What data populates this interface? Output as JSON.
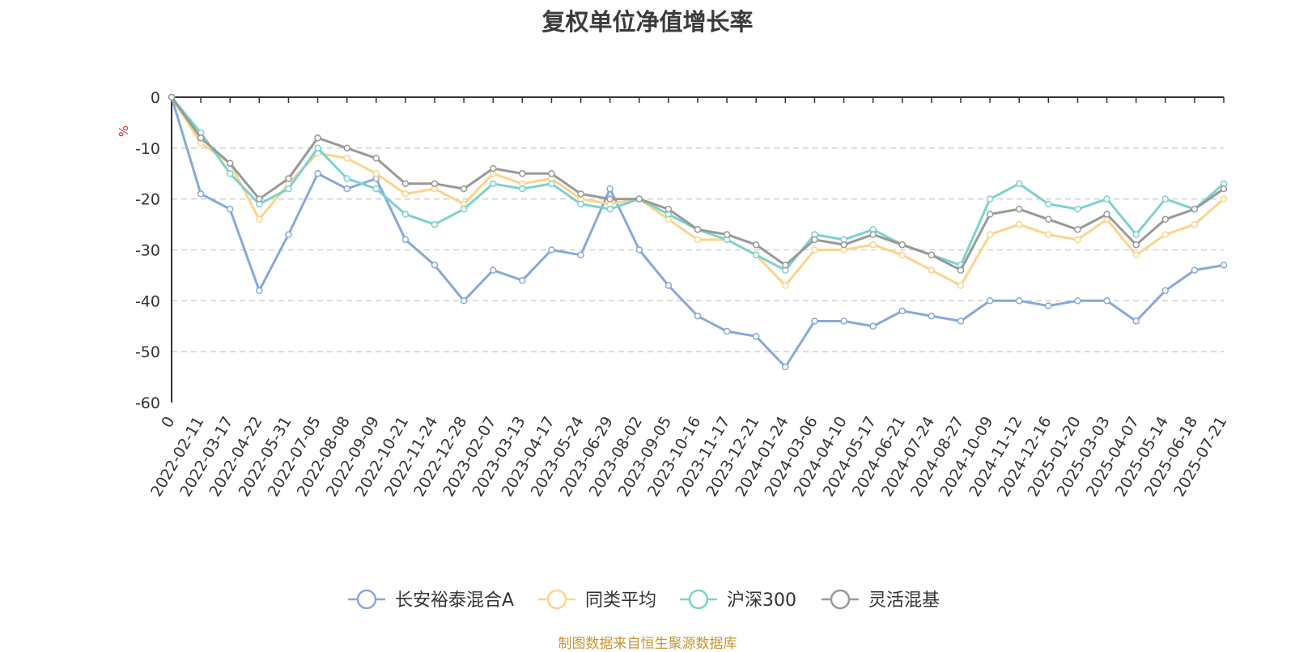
{
  "chart_data": {
    "type": "line",
    "title": "复权单位净值增长率",
    "ylabel": "%",
    "ylim": [
      -60,
      0
    ],
    "yticks": [
      0,
      -10,
      -20,
      -30,
      -40,
      -50,
      -60
    ],
    "x": [
      "0",
      "2022-02-11",
      "2022-03-17",
      "2022-04-22",
      "2022-05-31",
      "2022-07-05",
      "2022-08-08",
      "2022-09-09",
      "2022-10-21",
      "2022-11-24",
      "2022-12-28",
      "2023-02-07",
      "2023-03-13",
      "2023-04-17",
      "2023-05-24",
      "2023-06-29",
      "2023-08-02",
      "2023-09-05",
      "2023-10-16",
      "2023-11-17",
      "2023-12-21",
      "2024-01-24",
      "2024-03-06",
      "2024-04-10",
      "2024-05-17",
      "2024-06-21",
      "2024-07-24",
      "2024-08-27",
      "2024-10-09",
      "2024-11-12",
      "2024-12-16",
      "2025-01-20",
      "2025-03-03",
      "2025-04-07",
      "2025-05-14",
      "2025-06-18",
      "2025-07-21"
    ],
    "series": [
      {
        "name": "长安裕泰混合A",
        "color": "#87a9d8",
        "values": [
          0,
          -19,
          -22,
          -38,
          -27,
          -15,
          -18,
          -16,
          -28,
          -33,
          -40,
          -34,
          -36,
          -30,
          -31,
          -18,
          -30,
          -37,
          -43,
          -46,
          -47,
          -53,
          -44,
          -44,
          -45,
          -42,
          -43,
          -44,
          -40,
          -40,
          -41,
          -40,
          -40,
          -44,
          -38,
          -34,
          -33
        ]
      },
      {
        "name": "同类平均",
        "color": "#fdd48a",
        "values": [
          0,
          -9,
          -13,
          -24,
          -17,
          -11,
          -12,
          -15,
          -19,
          -18,
          -21,
          -15,
          -17,
          -16,
          -20,
          -21,
          -20,
          -24,
          -28,
          -28,
          -31,
          -37,
          -30,
          -30,
          -29,
          -31,
          -34,
          -37,
          -27,
          -25,
          -27,
          -28,
          -24,
          -31,
          -27,
          -25,
          -20
        ]
      },
      {
        "name": "沪深300",
        "color": "#7cd2cf",
        "values": [
          0,
          -7,
          -15,
          -21,
          -18,
          -10,
          -16,
          -18,
          -23,
          -25,
          -22,
          -17,
          -18,
          -17,
          -21,
          -22,
          -20,
          -23,
          -26,
          -28,
          -31,
          -34,
          -27,
          -28,
          -26,
          -29,
          -31,
          -33,
          -20,
          -17,
          -21,
          -22,
          -20,
          -27,
          -20,
          -22,
          -17
        ]
      },
      {
        "name": "灵活混基",
        "color": "#999999",
        "values": [
          0,
          -8,
          -13,
          -20,
          -16,
          -8,
          -10,
          -12,
          -17,
          -17,
          -18,
          -14,
          -15,
          -15,
          -19,
          -20,
          -20,
          -22,
          -26,
          -27,
          -29,
          -33,
          -28,
          -29,
          -27,
          -29,
          -31,
          -34,
          -23,
          -22,
          -24,
          -26,
          -23,
          -29,
          -24,
          -22,
          -18
        ]
      }
    ],
    "grid": "horizontal-dashed",
    "legend_position": "bottom-center"
  },
  "source_note": "制图数据来自恒生聚源数据库"
}
